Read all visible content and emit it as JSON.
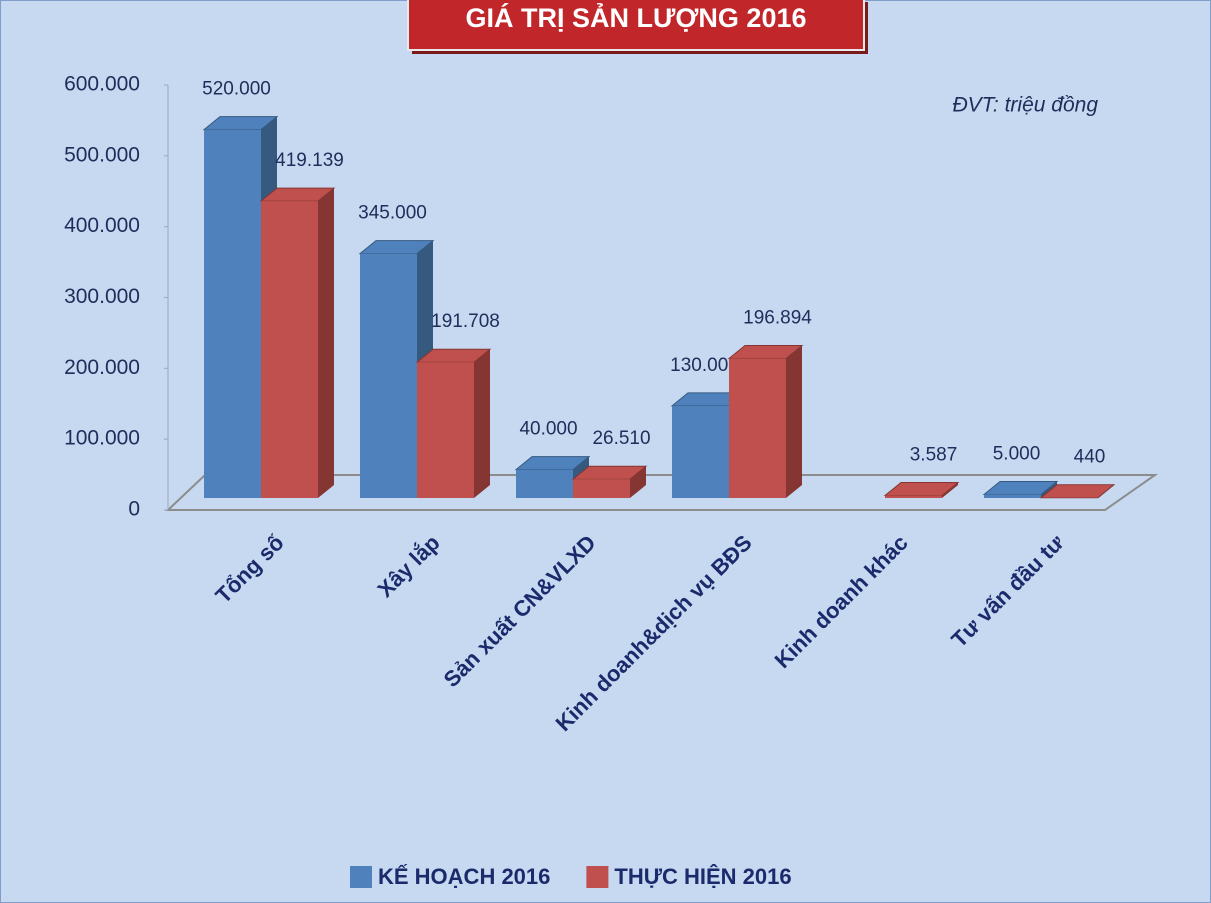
{
  "chart_data": {
    "type": "bar3d",
    "title": "GIÁ TRỊ SẢN LƯỢNG 2016",
    "annotation": "ĐVT: triệu đồng",
    "categories": [
      "Tổng số",
      "Xây lắp",
      "Sản xuất CN&VLXD",
      "Kinh doanh&dịch vụ BĐS",
      "Kinh doanh khác",
      "Tư vấn đầu tư"
    ],
    "series": [
      {
        "name": "KẾ HOẠCH 2016",
        "color": "#4f81bd",
        "side_color": "#36597f",
        "values": [
          520000,
          345000,
          40000,
          130000,
          null,
          5000
        ],
        "value_labels": [
          "520.000",
          "345.000",
          "40.000",
          "130.000",
          null,
          "5.000"
        ]
      },
      {
        "name": "THỰC HIỆN 2016",
        "color": "#c0504d",
        "side_color": "#853633",
        "values": [
          419139,
          191708,
          26510,
          196894,
          3587,
          440
        ],
        "value_labels": [
          "419.139",
          "191.708",
          "26.510",
          "196.894",
          "3.587",
          "440"
        ]
      }
    ],
    "ylim": [
      0,
      600000
    ],
    "yticks": [
      0,
      {
        "value": 100000,
        "label": "100.000"
      },
      {
        "value": 200000,
        "label": "200.000"
      },
      {
        "value": 300000,
        "label": "300.000"
      },
      {
        "value": 400000,
        "label": "400.000"
      },
      {
        "value": 500000,
        "label": "500.000"
      },
      {
        "value": 600000,
        "label": "600.000"
      }
    ],
    "legend": "bottom"
  }
}
